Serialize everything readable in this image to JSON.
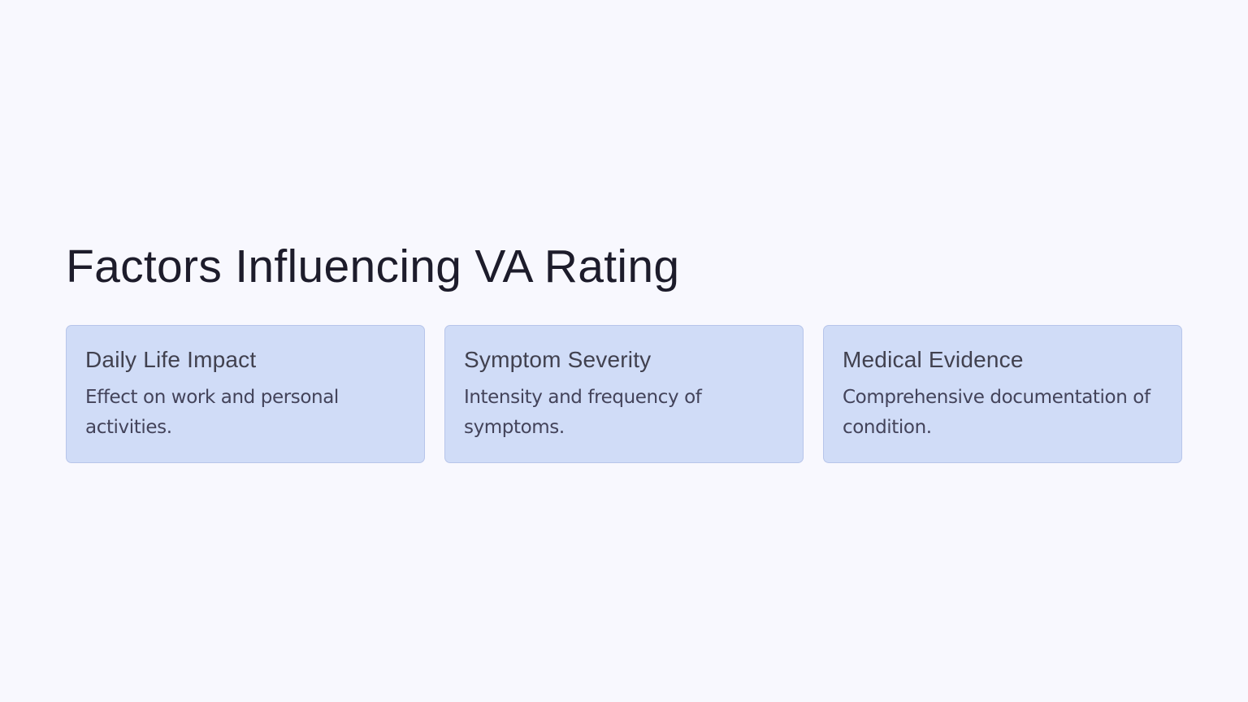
{
  "slide": {
    "title": "Factors Influencing VA Rating",
    "cards": [
      {
        "title": "Daily Life Impact",
        "description": "Effect on work and personal activities."
      },
      {
        "title": "Symptom Severity",
        "description": "Intensity and frequency of symptoms."
      },
      {
        "title": "Medical Evidence",
        "description": "Comprehensive documentation of condition."
      }
    ]
  },
  "colors": {
    "background": "#f8f8fe",
    "card_background": "#d0dcf7",
    "card_border": "#b7c5ea",
    "title_text": "#1d1c2b",
    "card_title_text": "#41414f",
    "card_desc_text": "#43435a"
  }
}
